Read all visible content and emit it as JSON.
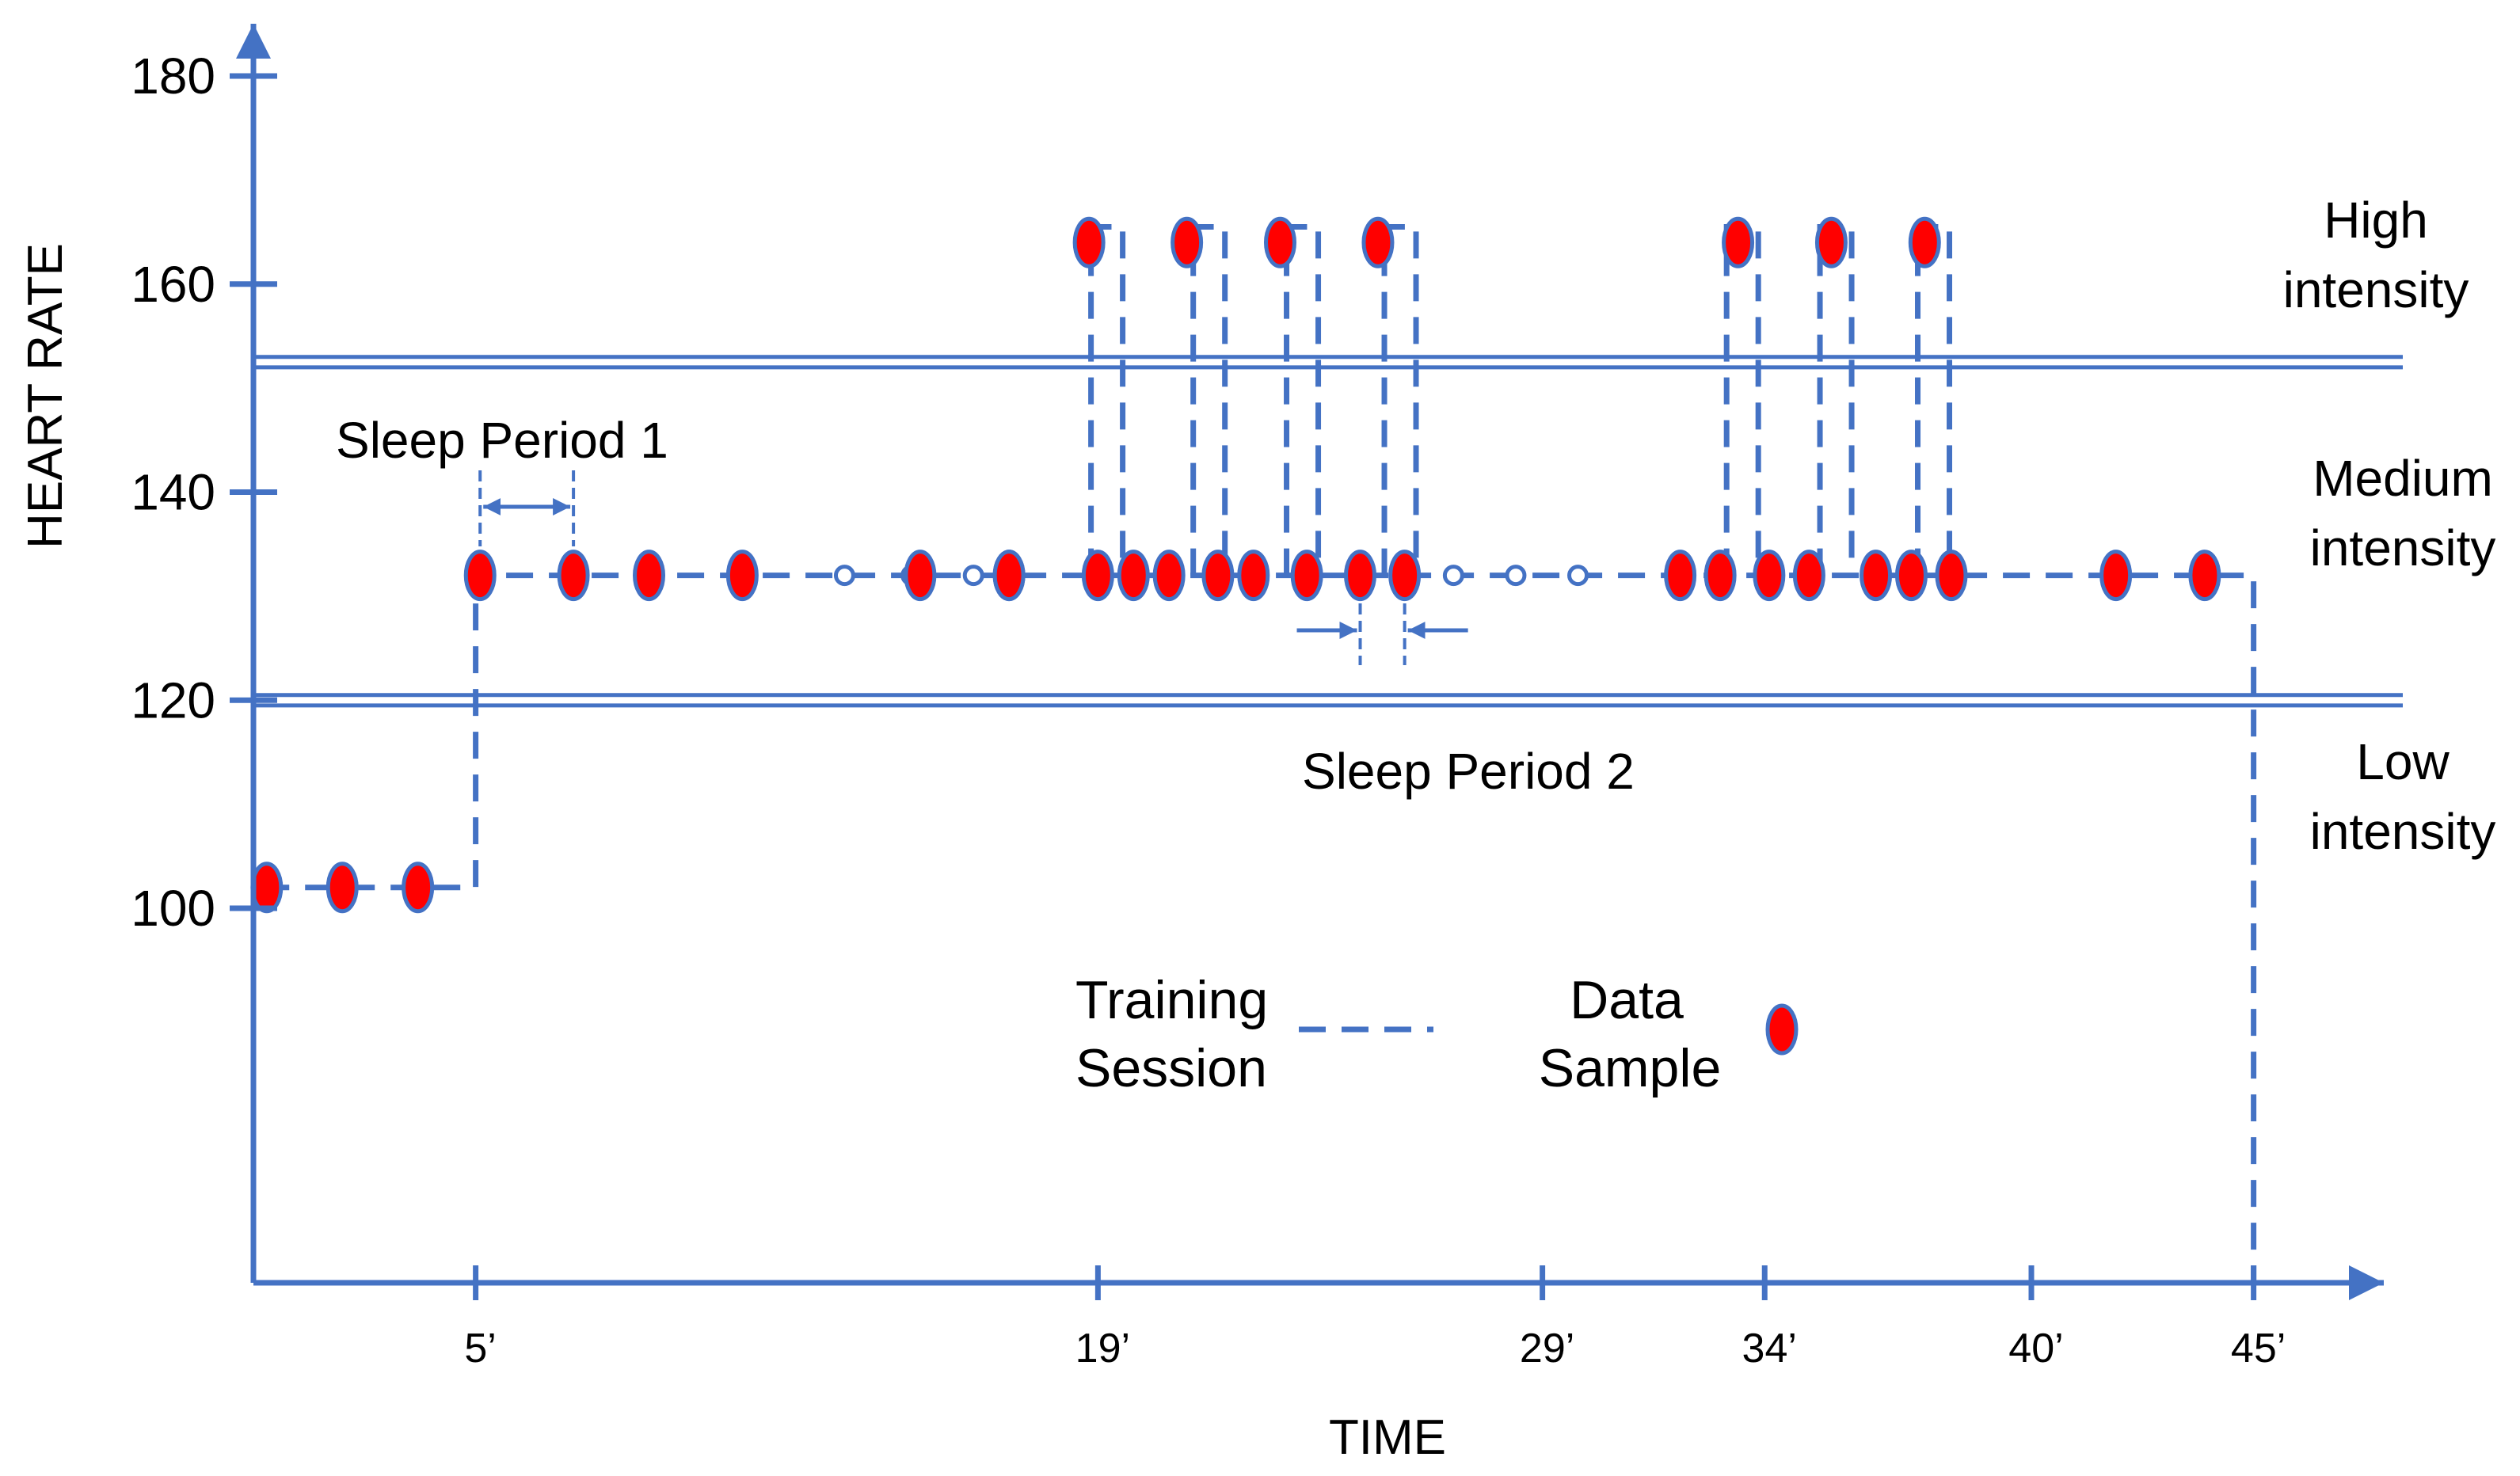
{
  "chart_data": {
    "type": "scatter",
    "title": "",
    "xlabel": "TIME",
    "ylabel": "HEART RATE",
    "xlim": [
      0,
      48
    ],
    "ylim": [
      64,
      180
    ],
    "y_ticks": [
      100,
      120,
      140,
      160,
      180
    ],
    "x_ticks": [
      {
        "value": 5,
        "label": "5’"
      },
      {
        "value": 19,
        "label": "19’"
      },
      {
        "value": 29,
        "label": "29’"
      },
      {
        "value": 34,
        "label": "34’"
      },
      {
        "value": 40,
        "label": "40’"
      },
      {
        "value": 45,
        "label": "45’"
      }
    ],
    "intensity_bands": [
      {
        "name": "High intensity",
        "line1": "High",
        "line2": "intensity",
        "range": [
          152,
          180
        ]
      },
      {
        "name": "Medium intensity",
        "line1": "Medium",
        "line2": "intensity",
        "range": [
          120,
          152
        ]
      },
      {
        "name": "Low intensity",
        "line1": "Low",
        "line2": "intensity",
        "range": [
          64,
          120
        ]
      }
    ],
    "threshold_lines": [
      153,
      152,
      120.5,
      119.5
    ],
    "training_session": {
      "name": "Training Session",
      "x": [
        0.2,
        5,
        5,
        45,
        45
      ],
      "y": [
        102,
        102,
        132,
        132,
        64
      ]
    },
    "high_intensity_spikes": [
      19.2,
      21.5,
      23.6,
      25.8,
      33.5,
      35.6,
      37.8
    ],
    "spike_level": 164,
    "data_samples": {
      "name": "Data Sample",
      "points": [
        [
          0.3,
          102
        ],
        [
          2.0,
          102
        ],
        [
          3.7,
          102
        ],
        [
          5.1,
          132
        ],
        [
          7.2,
          132
        ],
        [
          8.9,
          132
        ],
        [
          11.0,
          132
        ],
        [
          18.8,
          164
        ],
        [
          21.0,
          164
        ],
        [
          23.1,
          164
        ],
        [
          25.3,
          164
        ],
        [
          19.8,
          132
        ],
        [
          20.6,
          132
        ],
        [
          21.7,
          132
        ],
        [
          22.5,
          132
        ],
        [
          23.7,
          132
        ],
        [
          24.9,
          132
        ],
        [
          25.9,
          132
        ],
        [
          33.4,
          164
        ],
        [
          35.5,
          164
        ],
        [
          37.6,
          164
        ],
        [
          32.1,
          132
        ],
        [
          33.0,
          132
        ],
        [
          34.1,
          132
        ],
        [
          35.0,
          132
        ],
        [
          36.5,
          132
        ],
        [
          37.3,
          132
        ],
        [
          38.2,
          132
        ],
        [
          15.0,
          132
        ],
        [
          17.0,
          132
        ],
        [
          17.0,
          132
        ],
        [
          19.0,
          132
        ],
        [
          41.9,
          132
        ],
        [
          43.9,
          132
        ]
      ],
      "gaps": [
        [
          13.3,
          132
        ],
        [
          14.8,
          132
        ],
        [
          16.2,
          132
        ],
        [
          27.0,
          132
        ],
        [
          28.4,
          132
        ],
        [
          29.8,
          132
        ]
      ]
    },
    "annotations": {
      "sleep_period_1": "Sleep Period 1",
      "sleep_period_2": "Sleep Period 2",
      "sleep1_range": [
        5.1,
        7.2
      ],
      "sleep2_range": [
        24.9,
        25.9
      ]
    },
    "legend": {
      "training_line1": "Training",
      "training_line2": "Session",
      "sample_line1": "Data",
      "sample_line2": "Sample"
    },
    "colors": {
      "axis": "#4472C4",
      "series": "#4472C4",
      "marker_fill": "#FF0000",
      "marker_stroke": "#4472C4",
      "text": "#000000"
    }
  }
}
